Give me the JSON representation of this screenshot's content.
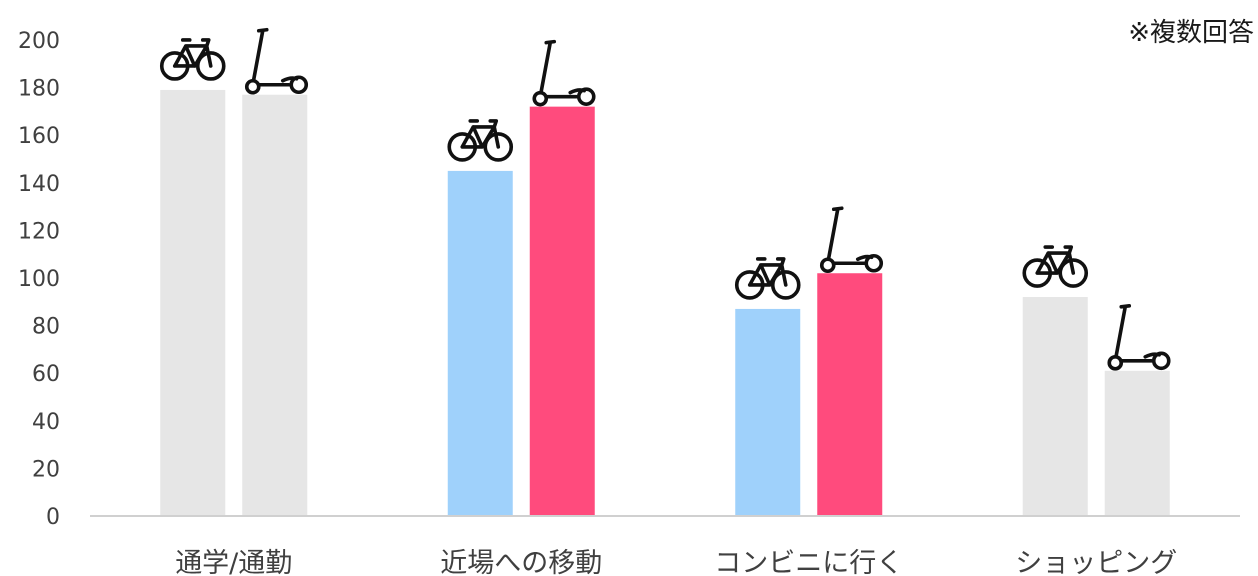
{
  "note": "※複数回答",
  "icons": {
    "series_a": "bicycle-icon",
    "series_b": "kick-scooter-icon"
  },
  "colors": {
    "muted": "#e6e6e6",
    "series_a_highlight": "#9fd1fb",
    "series_b_highlight": "#ff4b7d",
    "axis": "#d0d0d0",
    "icon": "#111111"
  },
  "chart_data": {
    "type": "bar",
    "categories": [
      "通学/通勤",
      "近場への移動",
      "コンビニに行く",
      "ショッピング"
    ],
    "series": [
      {
        "values": [
          179,
          145,
          87,
          92
        ]
      },
      {
        "values": [
          177,
          172,
          102,
          61
        ]
      }
    ],
    "highlighted_categories": [
      1,
      2
    ],
    "ylim": [
      0,
      200
    ],
    "yticks": [
      0,
      20,
      40,
      60,
      80,
      100,
      120,
      140,
      160,
      180,
      200
    ],
    "grid": false,
    "legend": "none"
  }
}
